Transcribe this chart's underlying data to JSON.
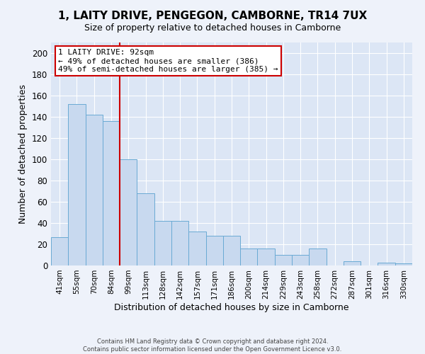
{
  "title": "1, LAITY DRIVE, PENGEGON, CAMBORNE, TR14 7UX",
  "subtitle": "Size of property relative to detached houses in Camborne",
  "xlabel": "Distribution of detached houses by size in Camborne",
  "ylabel": "Number of detached properties",
  "categories": [
    "41sqm",
    "55sqm",
    "70sqm",
    "84sqm",
    "99sqm",
    "113sqm",
    "128sqm",
    "142sqm",
    "157sqm",
    "171sqm",
    "186sqm",
    "200sqm",
    "214sqm",
    "229sqm",
    "243sqm",
    "258sqm",
    "272sqm",
    "287sqm",
    "301sqm",
    "316sqm",
    "330sqm"
  ],
  "values": [
    27,
    152,
    142,
    136,
    100,
    68,
    42,
    42,
    32,
    28,
    28,
    16,
    16,
    10,
    10,
    16,
    0,
    4,
    0,
    3,
    2
  ],
  "bar_color": "#c8d9ef",
  "bar_edge_color": "#6aaad4",
  "vline_x_index": 3.5,
  "vline_color": "#cc0000",
  "annotation_line1": "1 LAITY DRIVE: 92sqm",
  "annotation_line2": "← 49% of detached houses are smaller (386)",
  "annotation_line3": "49% of semi-detached houses are larger (385) →",
  "annotation_box_color": "#cc0000",
  "ylim": [
    0,
    210
  ],
  "yticks": [
    0,
    20,
    40,
    60,
    80,
    100,
    120,
    140,
    160,
    180,
    200
  ],
  "bg_color": "#dce6f5",
  "fig_bg_color": "#eef2fa",
  "footer_line1": "Contains HM Land Registry data © Crown copyright and database right 2024.",
  "footer_line2": "Contains public sector information licensed under the Open Government Licence v3.0."
}
